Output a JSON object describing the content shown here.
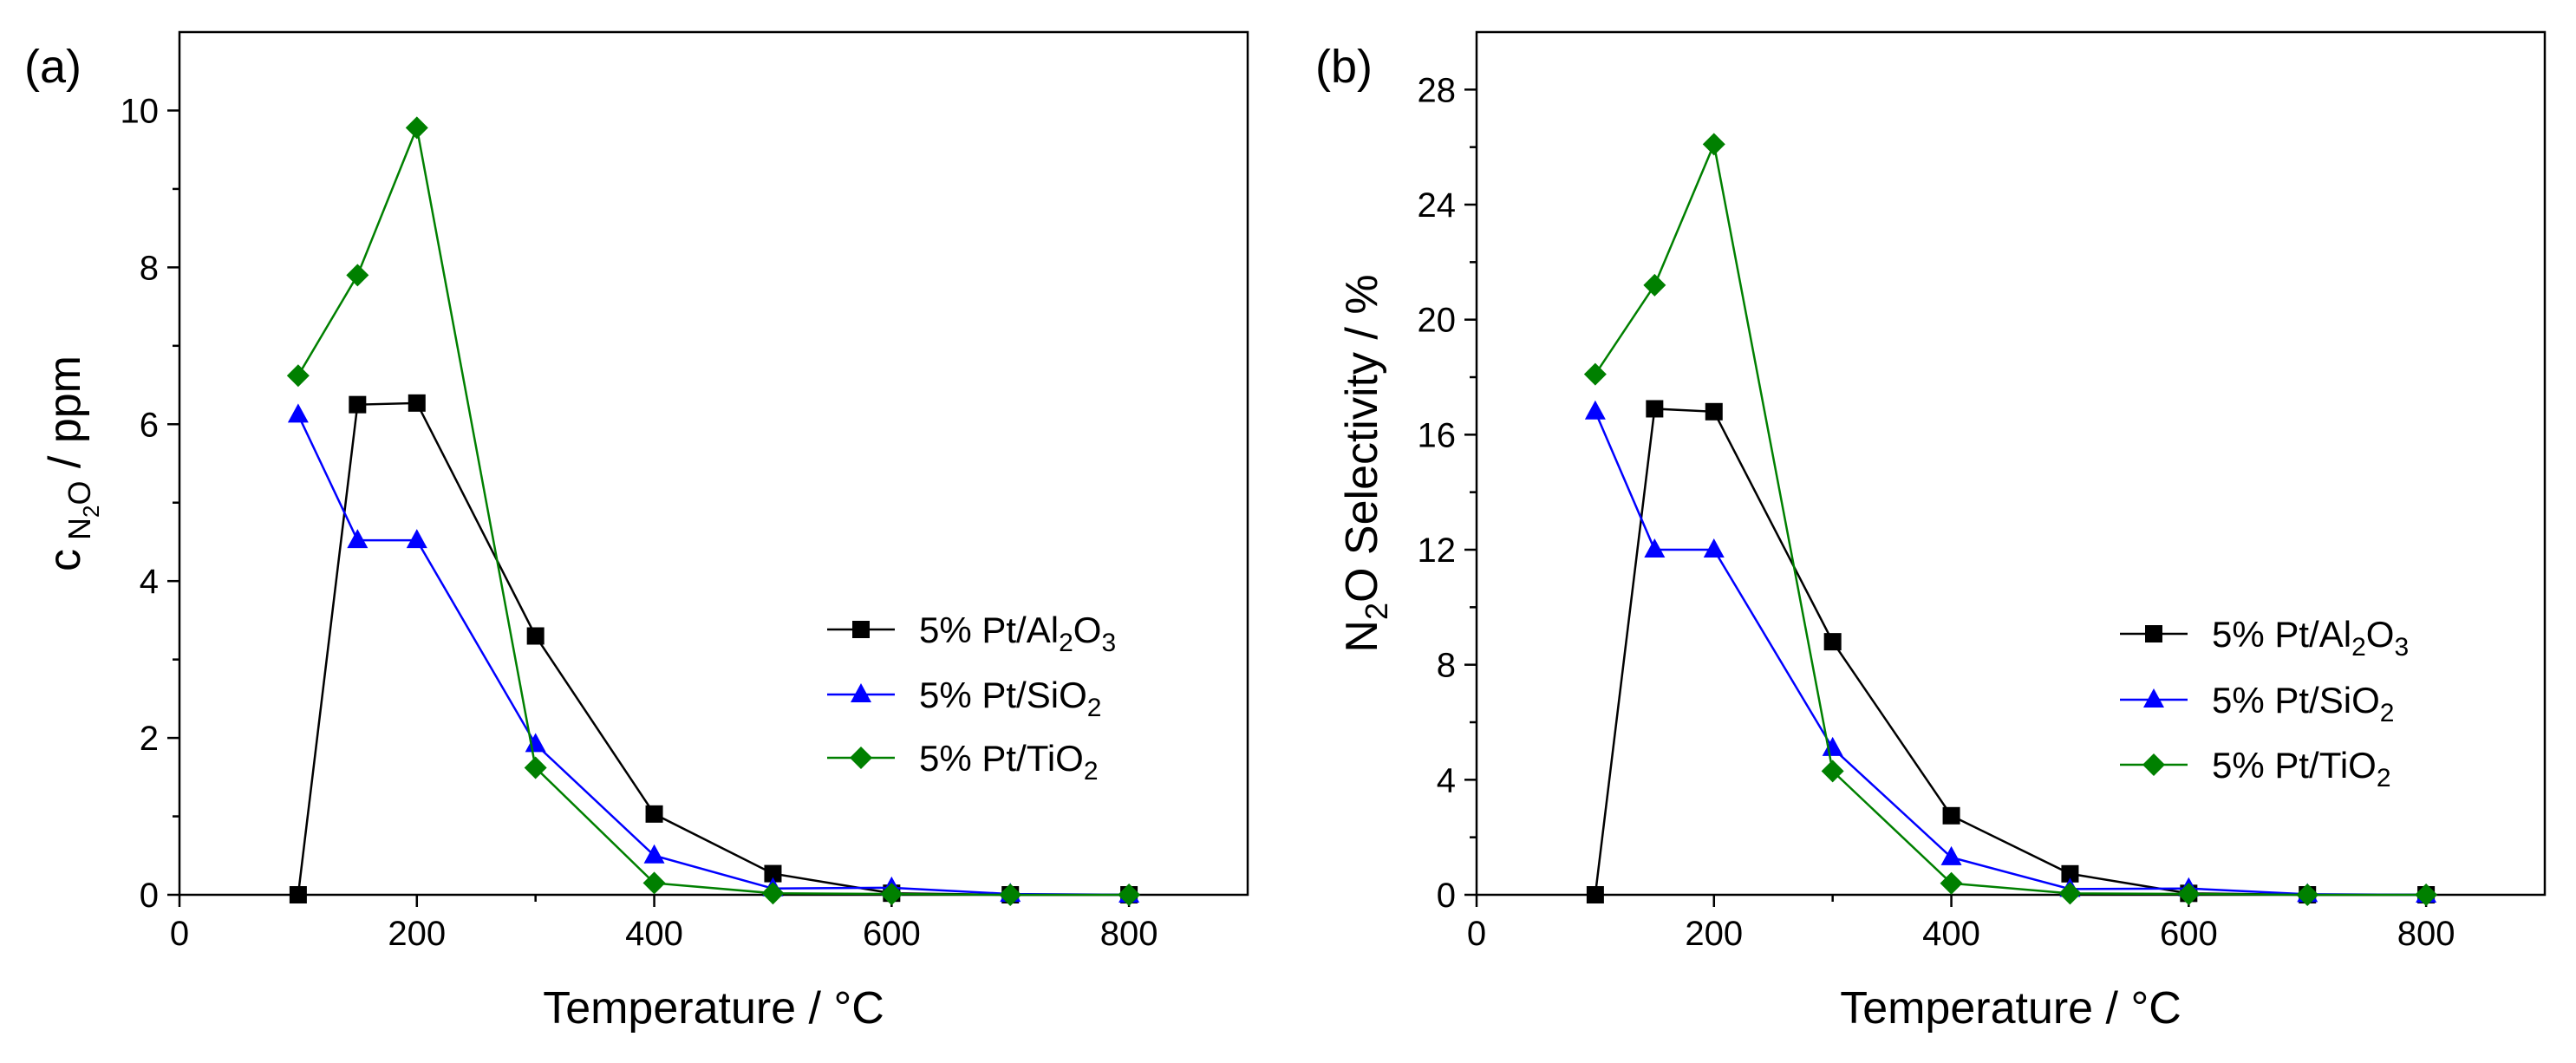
{
  "chart_data": [
    {
      "type": "line",
      "panel_label": "(a)",
      "xlabel": "Temperature / °C",
      "ylabel": {
        "prefix": "c",
        "subscript": "N",
        "subscript2": "2",
        "subscript3": "O",
        "suffix": " / ppm"
      },
      "xlim": [
        0,
        900
      ],
      "ylim": [
        0,
        11
      ],
      "xticks": [
        0,
        200,
        400,
        600,
        800
      ],
      "yticks": [
        0,
        2,
        4,
        6,
        8,
        10
      ],
      "x": [
        100,
        150,
        200,
        300,
        400,
        500,
        600,
        700,
        800
      ],
      "legend_position": "center-right",
      "series": [
        {
          "name": "5% Pt/Al2O3",
          "label": {
            "base": "5% Pt/Al",
            "s1": "2",
            "mid": "O",
            "s2": "3"
          },
          "color": "#000000",
          "marker": "square",
          "values": [
            0.0,
            6.25,
            6.27,
            3.3,
            1.03,
            0.27,
            0.02,
            0.0,
            0.0
          ]
        },
        {
          "name": "5% Pt/SiO2",
          "label": {
            "base": "5% Pt/SiO",
            "s1": "2",
            "mid": "",
            "s2": ""
          },
          "color": "#0000ff",
          "marker": "triangle",
          "values": [
            6.12,
            4.52,
            4.52,
            1.92,
            0.5,
            0.08,
            0.09,
            0.01,
            0.0
          ]
        },
        {
          "name": "5% Pt/TiO2",
          "label": {
            "base": "5% Pt/TiO",
            "s1": "2",
            "mid": "",
            "s2": ""
          },
          "color": "#008000",
          "marker": "diamond",
          "values": [
            6.62,
            7.9,
            9.78,
            1.62,
            0.15,
            0.02,
            0.01,
            0.0,
            0.0
          ]
        }
      ]
    },
    {
      "type": "line",
      "panel_label": "(b)",
      "xlabel": "Temperature / °C",
      "ylabel": {
        "prefix": "N",
        "subscript": "2",
        "suffix": "O Selectivity / %"
      },
      "xlim": [
        0,
        900
      ],
      "ylim": [
        0,
        30
      ],
      "xticks": [
        0,
        200,
        400,
        600,
        800
      ],
      "yticks": [
        0,
        4,
        8,
        12,
        16,
        20,
        24,
        28
      ],
      "x": [
        100,
        150,
        200,
        300,
        400,
        500,
        600,
        700,
        800
      ],
      "legend_position": "bottom-right",
      "series": [
        {
          "name": "5% Pt/Al2O3",
          "label": {
            "base": "5% Pt/Al",
            "s1": "2",
            "mid": "O",
            "s2": "3"
          },
          "color": "#000000",
          "marker": "square",
          "values": [
            0.0,
            16.9,
            16.8,
            8.8,
            2.75,
            0.73,
            0.05,
            0.0,
            0.0
          ]
        },
        {
          "name": "5% Pt/SiO2",
          "label": {
            "base": "5% Pt/SiO",
            "s1": "2",
            "mid": "",
            "s2": ""
          },
          "color": "#0000ff",
          "marker": "triangle",
          "values": [
            16.8,
            12.0,
            12.0,
            5.1,
            1.3,
            0.2,
            0.22,
            0.02,
            0.0
          ]
        },
        {
          "name": "5% Pt/TiO2",
          "label": {
            "base": "5% Pt/TiO",
            "s1": "2",
            "mid": "",
            "s2": ""
          },
          "color": "#008000",
          "marker": "diamond",
          "values": [
            18.1,
            21.2,
            26.1,
            4.3,
            0.4,
            0.05,
            0.03,
            0.0,
            0.0
          ]
        }
      ]
    }
  ]
}
